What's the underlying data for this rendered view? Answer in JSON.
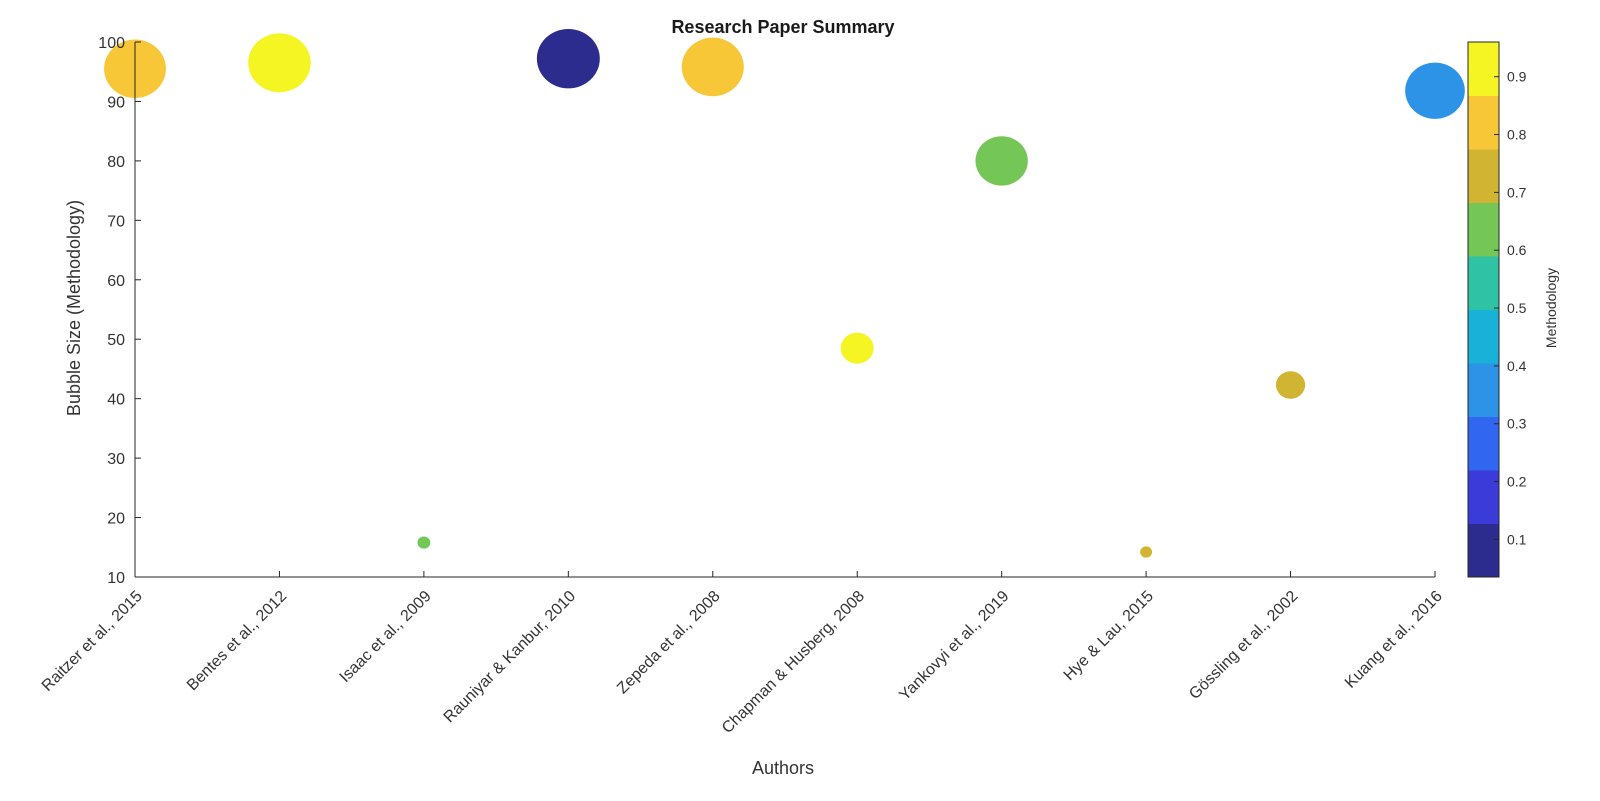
{
  "chart_data": {
    "type": "scatter",
    "title": "Research Paper Summary",
    "xlabel": "Authors",
    "ylabel": "Bubble Size (Methodology)",
    "ylim": [
      10,
      100
    ],
    "yticks": [
      10,
      20,
      30,
      40,
      50,
      60,
      70,
      80,
      90,
      100
    ],
    "grid": false,
    "categories": [
      "Raitzer et al., 2015",
      "Bentes et al., 2012",
      "Isaac et al., 2009",
      "Rauniyar & Kanbur, 2010",
      "Zepeda et al., 2008",
      "Chapman & Husberg, 2008",
      "Yankovyi et al., 2019",
      "Hye & Lau, 2015",
      "Gössling et al., 2002",
      "Kuang et al., 2016"
    ],
    "values": [
      95.5,
      96.5,
      15.8,
      97.2,
      95.8,
      48.5,
      80,
      14.2,
      42.3,
      91.8
    ],
    "color_values": [
      0.79,
      0.91,
      0.63,
      0.08,
      0.8,
      0.91,
      0.62,
      0.73,
      0.74,
      0.37
    ],
    "colorbar": {
      "label": "Methodology",
      "ticks": [
        0.1,
        0.2,
        0.3,
        0.4,
        0.5,
        0.6,
        0.7,
        0.8,
        0.9
      ],
      "range": [
        0.035,
        0.96
      ],
      "colors": [
        "#2c2b8e",
        "#3a3bd8",
        "#3166f0",
        "#2c93e6",
        "#1ab1d8",
        "#30c2a4",
        "#74c757",
        "#d1b431",
        "#f8c737",
        "#f6f524"
      ]
    }
  }
}
